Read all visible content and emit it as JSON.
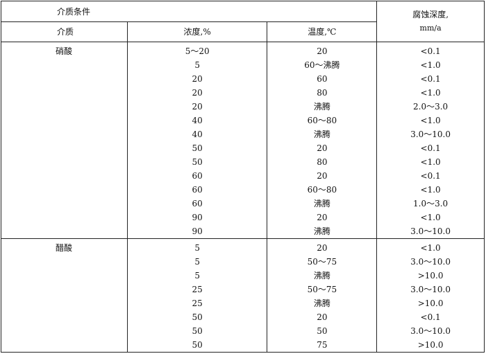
{
  "header": {
    "conditions": "介质条件",
    "depth": "腐蚀深度,",
    "depth_unit": "mm/a",
    "medium": "介质",
    "concentration": "浓度,%",
    "temperature": "温度,℃"
  },
  "groups": [
    {
      "medium": "硝酸",
      "rows": [
        [
          "5～20",
          "20",
          "<0.1"
        ],
        [
          "5",
          "60～沸腾",
          "<1.0"
        ],
        [
          "20",
          "60",
          "<0.1"
        ],
        [
          "20",
          "80",
          "<1.0"
        ],
        [
          "20",
          "沸腾",
          "2.0～3.0"
        ],
        [
          "40",
          "60～80",
          "<1.0"
        ],
        [
          "40",
          "沸腾",
          "3.0～10.0"
        ],
        [
          "50",
          "20",
          "<0.1"
        ],
        [
          "50",
          "80",
          "<1.0"
        ],
        [
          "60",
          "20",
          "<0.1"
        ],
        [
          "60",
          "60～80",
          "<1.0"
        ],
        [
          "60",
          "沸腾",
          "1.0～3.0"
        ],
        [
          "90",
          "20",
          "<1.0"
        ],
        [
          "90",
          "沸腾",
          "3.0～10.0"
        ]
      ]
    },
    {
      "medium": "醋酸",
      "rows": [
        [
          "5",
          "20",
          "<1.0"
        ],
        [
          "5",
          "50～75",
          "3.0～10.0"
        ],
        [
          "5",
          "沸腾",
          ">10.0"
        ],
        [
          "25",
          "50～75",
          "3.0～10.0"
        ],
        [
          "25",
          "沸腾",
          ">10.0"
        ],
        [
          "50",
          "20",
          "<0.1"
        ],
        [
          "50",
          "50",
          "3.0～10.0"
        ],
        [
          "50",
          "75",
          ">10.0"
        ]
      ]
    }
  ]
}
